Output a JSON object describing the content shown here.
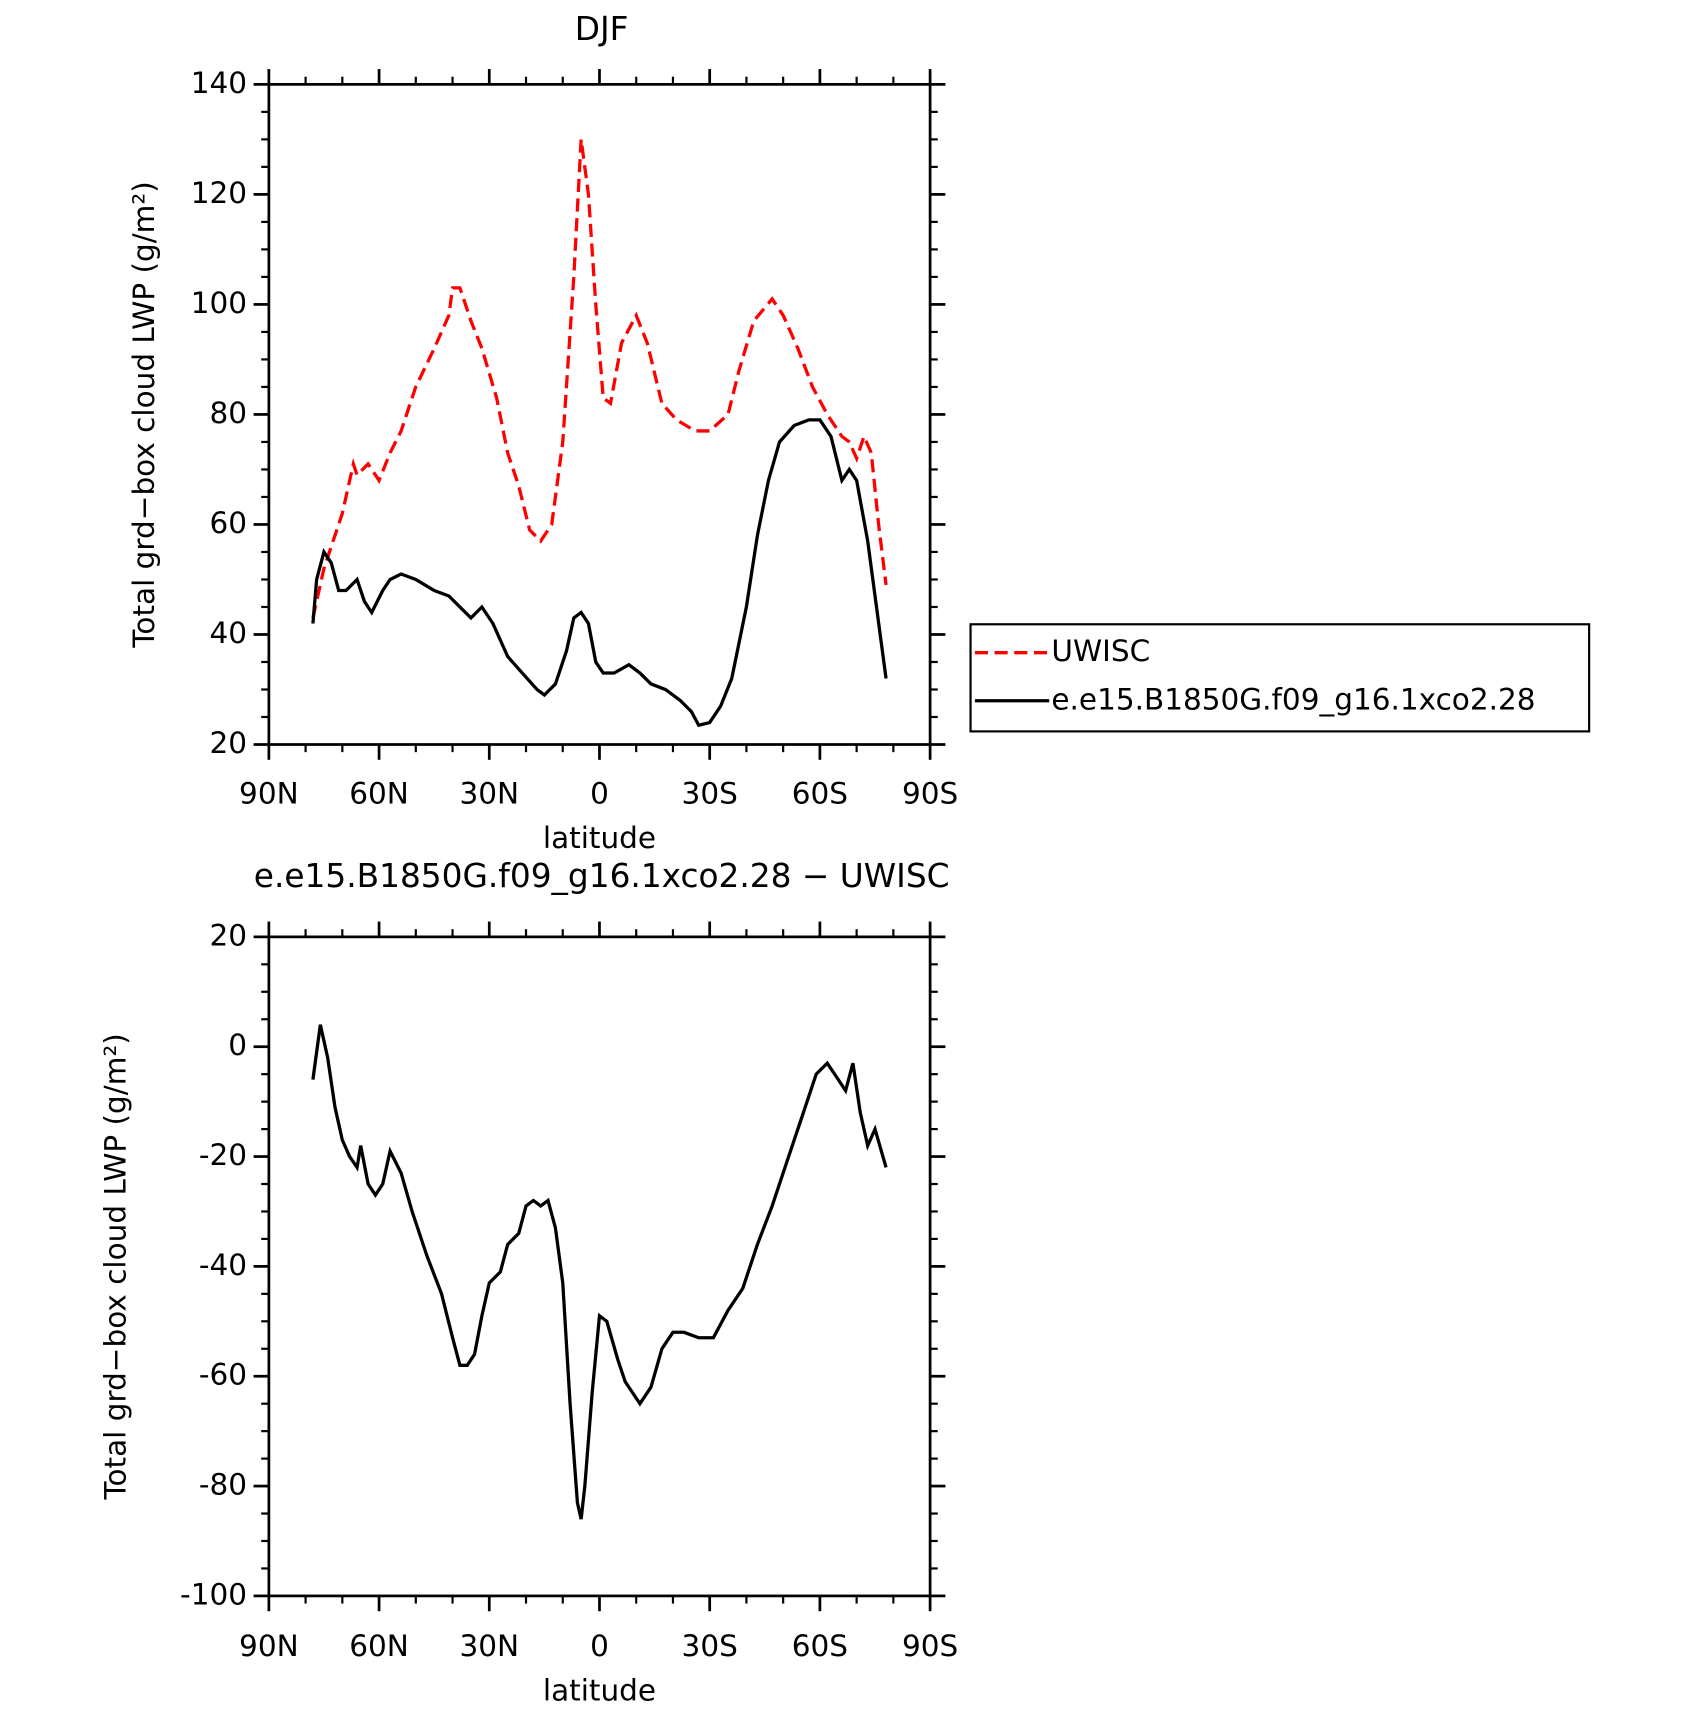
{
  "chart_data": [
    {
      "type": "line",
      "title": "DJF",
      "xlabel": "latitude",
      "ylabel": "Total grd−box cloud LWP (g/m²)",
      "xlim": [
        90,
        -90
      ],
      "xticks": [
        {
          "value": 90,
          "label": "90N"
        },
        {
          "value": 60,
          "label": "60N"
        },
        {
          "value": 30,
          "label": "30N"
        },
        0,
        {
          "value": -30,
          "label": "30S"
        },
        {
          "value": -60,
          "label": "60S"
        },
        {
          "value": -90,
          "label": "90S"
        }
      ],
      "ylim": [
        20,
        140
      ],
      "yticks": [
        20,
        40,
        60,
        80,
        100,
        120,
        140
      ],
      "legend": "outside-right",
      "series": [
        {
          "name": "UWISC",
          "color": "#ff0000",
          "dash": true,
          "x": [
            78,
            75,
            72,
            70,
            67,
            66,
            63,
            60,
            57,
            54,
            50,
            45,
            41,
            40,
            38,
            35,
            32,
            28,
            25,
            22,
            19,
            16,
            13,
            10,
            7,
            5,
            3,
            1,
            -1,
            -3,
            -6,
            -10,
            -13,
            -17,
            -21,
            -26,
            -30,
            -35,
            -38,
            -42,
            -47,
            -50,
            -54,
            -58,
            -62,
            -66,
            -68,
            -70,
            -72,
            -74,
            -76,
            -78
          ],
          "values": [
            43,
            52,
            58,
            62,
            71,
            69,
            71,
            68,
            73,
            77,
            85,
            92,
            98,
            103,
            103,
            97,
            92,
            83,
            73,
            67,
            59,
            57,
            60,
            75,
            105,
            130,
            120,
            100,
            83,
            82,
            93,
            98,
            93,
            82,
            79,
            77,
            77,
            80,
            88,
            97,
            101,
            98,
            92,
            85,
            80,
            76,
            75,
            72,
            76,
            73,
            60,
            49
          ]
        },
        {
          "name": "e.e15.B1850G.f09_g16.1xco2.28",
          "color": "#000000",
          "dash": false,
          "x": [
            78,
            77,
            75,
            73,
            71,
            69,
            66,
            64,
            62,
            59,
            57,
            54,
            50,
            45,
            41,
            38,
            35,
            32,
            29,
            25,
            21,
            17,
            15,
            12,
            9,
            7,
            5,
            3,
            1,
            -1,
            -4,
            -8,
            -11,
            -14,
            -18,
            -22,
            -25,
            -27,
            -30,
            -33,
            -36,
            -40,
            -43,
            -46,
            -49,
            -53,
            -57,
            -60,
            -63,
            -66,
            -68,
            -70,
            -73,
            -78
          ],
          "values": [
            42,
            50,
            55,
            53,
            48,
            48,
            50,
            46,
            44,
            48,
            50,
            51,
            50,
            48,
            47,
            45,
            43,
            45,
            42,
            36,
            33,
            30,
            29,
            31,
            37,
            43,
            44,
            42,
            35,
            33,
            33,
            34.5,
            33,
            31,
            30,
            28,
            26,
            23.5,
            24,
            27,
            32,
            45,
            58,
            68,
            75,
            78,
            79,
            79,
            76,
            68,
            70,
            68,
            57,
            32
          ]
        }
      ]
    },
    {
      "type": "line",
      "title": "e.e15.B1850G.f09_g16.1xco2.28 − UWISC",
      "xlabel": "latitude",
      "ylabel": "Total grd−box cloud LWP (g/m²)",
      "xlim": [
        90,
        -90
      ],
      "xticks": [
        {
          "value": 90,
          "label": "90N"
        },
        {
          "value": 60,
          "label": "60N"
        },
        {
          "value": 30,
          "label": "30N"
        },
        0,
        {
          "value": -30,
          "label": "30S"
        },
        {
          "value": -60,
          "label": "60S"
        },
        {
          "value": -90,
          "label": "90S"
        }
      ],
      "ylim": [
        -100,
        20
      ],
      "yticks": [
        -100,
        -80,
        -60,
        -40,
        -20,
        0,
        20
      ],
      "series": [
        {
          "color": "#000000",
          "dash": false,
          "x": [
            78,
            76,
            74,
            72,
            70,
            68,
            66,
            65,
            63,
            61,
            59,
            57,
            54,
            51,
            47,
            43,
            40,
            38,
            36,
            34,
            32,
            30,
            27,
            25,
            22,
            20,
            18,
            16,
            14,
            12,
            10,
            8,
            6,
            5,
            4,
            2,
            0,
            -2,
            -5,
            -7,
            -9,
            -11,
            -14,
            -17,
            -20,
            -23,
            -27,
            -31,
            -35,
            -39,
            -43,
            -47,
            -51,
            -55,
            -59,
            -62,
            -65,
            -67,
            -69,
            -71,
            -73,
            -75,
            -78
          ],
          "values": [
            -6,
            4,
            -2,
            -11,
            -17,
            -20,
            -22,
            -18,
            -25,
            -27,
            -25,
            -19,
            -23,
            -30,
            -38,
            -45,
            -53,
            -58,
            -58,
            -56,
            -49,
            -43,
            -41,
            -36,
            -34,
            -29,
            -28,
            -29,
            -28,
            -33,
            -43,
            -65,
            -83,
            -86,
            -80,
            -63,
            -49,
            -50,
            -57,
            -61,
            -63,
            -65,
            -62,
            -55,
            -52,
            -52,
            -53,
            -53,
            -48,
            -44,
            -36,
            -29,
            -21,
            -13,
            -5,
            -3,
            -6,
            -8,
            -3,
            -12,
            -18,
            -15,
            -22
          ]
        }
      ]
    }
  ]
}
